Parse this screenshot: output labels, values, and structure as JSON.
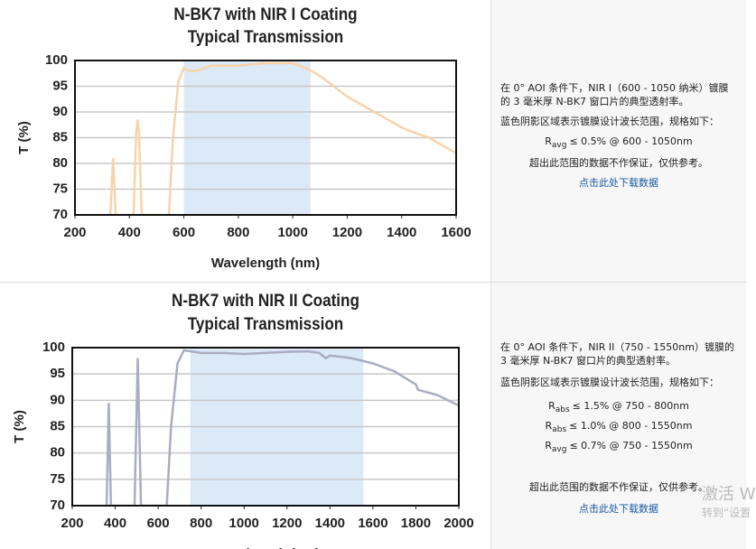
{
  "chart_data": [
    {
      "type": "line",
      "title": [
        "N-BK7 with NIR I Coating",
        "Typical Transmission"
      ],
      "x_label": "Wavelength (nm)",
      "y_label": "T (%)",
      "xlim": [
        200,
        1600
      ],
      "xticks": [
        200,
        400,
        600,
        800,
        1000,
        1200,
        1400,
        1600
      ],
      "ylim": [
        70,
        100
      ],
      "yticks": [
        70,
        75,
        80,
        85,
        90,
        95,
        100
      ],
      "grid": true,
      "shaded_range": [
        600,
        1065
      ],
      "shade_color": "#dce9f6",
      "color": "#f8d3aa",
      "x": [
        330,
        340,
        350,
        415,
        425,
        430,
        435,
        445,
        545,
        560,
        580,
        600,
        620,
        650,
        700,
        800,
        900,
        1000,
        1050,
        1100,
        1200,
        1300,
        1400,
        1420,
        1500,
        1600
      ],
      "values": [
        70,
        81,
        70,
        70,
        86,
        88.5,
        86,
        70,
        70,
        85,
        96,
        98.5,
        98,
        98,
        99,
        99,
        99.5,
        99.5,
        98.5,
        97,
        93,
        90,
        87,
        86.5,
        85,
        82
      ]
    },
    {
      "type": "line",
      "title": [
        "N-BK7 with NIR II Coating",
        "Typical Transmission"
      ],
      "x_label": "Wavelength (nm)",
      "y_label": "T (%)",
      "xlim": [
        200,
        2000
      ],
      "xticks": [
        200,
        400,
        600,
        800,
        1000,
        1200,
        1400,
        1600,
        1800,
        2000
      ],
      "ylim": [
        70,
        100
      ],
      "yticks": [
        70,
        75,
        80,
        85,
        90,
        95,
        100
      ],
      "grid": true,
      "shaded_range": [
        750,
        1555
      ],
      "shade_color": "#dce9f6",
      "color": "#a9adc0",
      "x": [
        360,
        370,
        380,
        490,
        505,
        520,
        640,
        660,
        690,
        720,
        800,
        900,
        1000,
        1200,
        1300,
        1350,
        1380,
        1400,
        1500,
        1600,
        1700,
        1800,
        1810,
        1900,
        2000
      ],
      "values": [
        70,
        89.5,
        70,
        70,
        98,
        70,
        70,
        85,
        97,
        99.5,
        99,
        99,
        98.8,
        99.2,
        99.3,
        99,
        98,
        98.5,
        98,
        97,
        95.5,
        93,
        92,
        91,
        89
      ]
    }
  ],
  "panels": [
    {
      "intro": "在 0° AOI 条件下，NIR I（600 - 1050 纳米）镀膜的 3 毫米厚 N-BK7 窗口片的典型透射率。",
      "spec_heading": "蓝色阴影区域表示镀膜设计波长范围，规格如下：",
      "specs": [
        {
          "symbol": "R",
          "sub": "avg",
          "text": "≤ 0.5% @ 600 - 1050nm"
        }
      ],
      "disclaimer": "超出此范围的数据不作保证，仅供参考。",
      "link": "点击此处下载数据"
    },
    {
      "intro": "在 0° AOI 条件下，NIR II（750 - 1550nm）镀膜的 3 毫米厚 N-BK7 窗口片的典型透射率。",
      "spec_heading": "蓝色阴影区域表示镀膜设计波长范围，规格如下：",
      "specs": [
        {
          "symbol": "R",
          "sub": "abs",
          "text": "≤ 1.5% @ 750 - 800nm"
        },
        {
          "symbol": "R",
          "sub": "abs",
          "text": "≤ 1.0% @ 800 - 1550nm"
        },
        {
          "symbol": "R",
          "sub": "avg",
          "text": "≤ 0.7% @ 750 - 1550nm"
        }
      ],
      "disclaimer": "超出此范围的数据不作保证，仅供参考。",
      "link": "点击此处下载数据"
    }
  ],
  "watermark": [
    "激活 W",
    "转到“设置"
  ]
}
